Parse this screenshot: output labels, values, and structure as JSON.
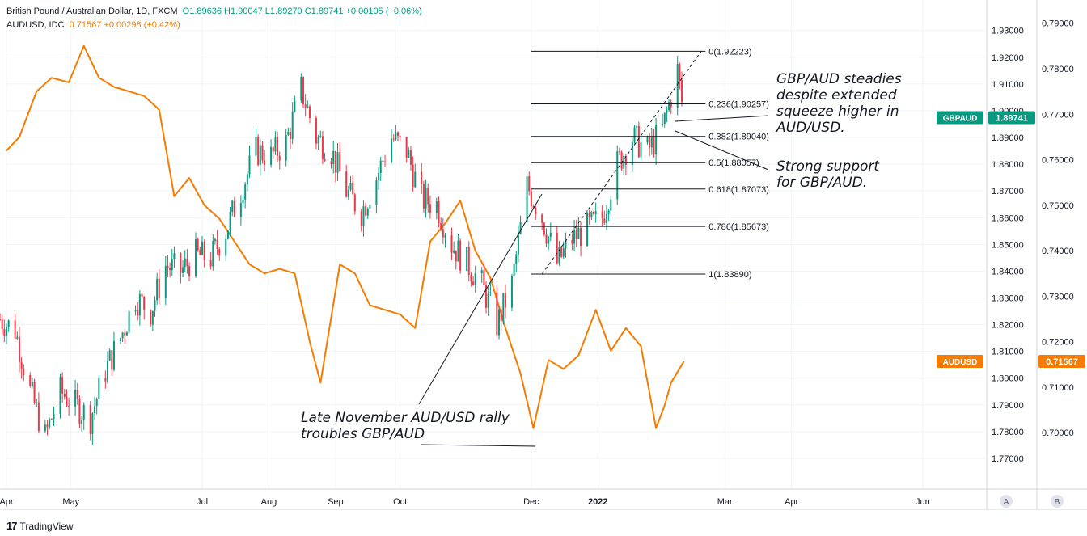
{
  "legend": {
    "main_symbol": "British Pound / Australian Dollar, 1D, FXCM",
    "main_values": "O1.89636  H1.90047  L1.89270  C1.89741  +0.00105 (+0.06%)",
    "overlay_symbol": "AUDUSD, IDC",
    "overlay_values": "0.71567  +0.00298 (+0.42%)"
  },
  "annotations": {
    "steady": "GBP/AUD steadies\ndespite extended\nsqueeze higher in\nAUD/USD.",
    "support": "Strong support\nfor GBP/AUD.",
    "rally": "Late November AUD/USD rally\ntroubles GBP/AUD"
  },
  "footer": {
    "logo": "17",
    "brand": "TradingView"
  },
  "colors": {
    "up": "#089981",
    "down": "#f23645",
    "overlay": "#f57c00",
    "grid": "#f0f3fa",
    "axis": "#d1d4dc"
  },
  "chart_data": {
    "type": "candlestick",
    "title": "British Pound / Australian Dollar, 1D, FXCM",
    "x_range": [
      "2021-04-01",
      "2022-06-30"
    ],
    "x_ticks": [
      {
        "date": "2021-04-01",
        "label": "Apr"
      },
      {
        "date": "2021-05-01",
        "label": "May"
      },
      {
        "date": "2021-07-01",
        "label": "Jul"
      },
      {
        "date": "2021-08-01",
        "label": "Aug"
      },
      {
        "date": "2021-09-01",
        "label": "Sep"
      },
      {
        "date": "2021-10-01",
        "label": "Oct"
      },
      {
        "date": "2021-12-01",
        "label": "Dec"
      },
      {
        "date": "2022-01-01",
        "label": "2022"
      },
      {
        "date": "2022-03-01",
        "label": "Mar"
      },
      {
        "date": "2022-04-01",
        "label": "Apr"
      },
      {
        "date": "2022-06-01",
        "label": "Jun"
      }
    ],
    "left_axis": {
      "name": "GBPAUD",
      "range": [
        1.7585,
        1.9414
      ],
      "ticks": [
        1.77,
        1.78,
        1.79,
        1.8,
        1.81,
        1.82,
        1.83,
        1.84,
        1.85,
        1.86,
        1.87,
        1.88,
        1.89,
        1.9,
        1.91,
        1.92,
        1.93
      ],
      "tick_labels": [
        "1.77000",
        "1.78000",
        "1.79000",
        "1.80000",
        "1.81000",
        "1.82000",
        "1.83000",
        "1.84000",
        "1.85000",
        "1.86000",
        "1.87000",
        "1.88000",
        "1.89000",
        "1.90000",
        "1.91000",
        "1.92000",
        "1.93000"
      ],
      "last": 1.89741,
      "last_label": "1.89741",
      "badge": "GBPAUD"
    },
    "right_axis": {
      "name": "AUDUSD",
      "range": [
        0.6876,
        0.7951
      ],
      "ticks": [
        0.7,
        0.71,
        0.72,
        0.73,
        0.74,
        0.75,
        0.76,
        0.77,
        0.78,
        0.79
      ],
      "tick_labels": [
        "0.70000",
        "0.71000",
        "0.72000",
        "0.73000",
        "0.74000",
        "0.75000",
        "0.76000",
        "0.77000",
        "0.78000",
        "0.79000"
      ],
      "last": 0.71567,
      "last_label": "0.71567",
      "badge": "AUDUSD"
    },
    "gbpaud_closes": [
      {
        "date": "2021-03-29",
        "v": 1.822
      },
      {
        "date": "2021-04-05",
        "v": 1.818
      },
      {
        "date": "2021-04-12",
        "v": 1.795
      },
      {
        "date": "2021-04-19",
        "v": 1.778
      },
      {
        "date": "2021-04-26",
        "v": 1.795
      },
      {
        "date": "2021-05-03",
        "v": 1.79
      },
      {
        "date": "2021-05-10",
        "v": 1.785
      },
      {
        "date": "2021-05-17",
        "v": 1.803
      },
      {
        "date": "2021-05-24",
        "v": 1.815
      },
      {
        "date": "2021-05-31",
        "v": 1.83
      },
      {
        "date": "2021-06-07",
        "v": 1.825
      },
      {
        "date": "2021-06-14",
        "v": 1.842
      },
      {
        "date": "2021-06-21",
        "v": 1.84
      },
      {
        "date": "2021-06-28",
        "v": 1.846
      },
      {
        "date": "2021-07-05",
        "v": 1.845
      },
      {
        "date": "2021-07-12",
        "v": 1.855
      },
      {
        "date": "2021-07-19",
        "v": 1.87
      },
      {
        "date": "2021-07-26",
        "v": 1.885
      },
      {
        "date": "2021-08-02",
        "v": 1.883
      },
      {
        "date": "2021-08-09",
        "v": 1.888
      },
      {
        "date": "2021-08-16",
        "v": 1.908
      },
      {
        "date": "2021-08-23",
        "v": 1.89
      },
      {
        "date": "2021-08-30",
        "v": 1.885
      },
      {
        "date": "2021-09-06",
        "v": 1.87
      },
      {
        "date": "2021-09-13",
        "v": 1.862
      },
      {
        "date": "2021-09-20",
        "v": 1.875
      },
      {
        "date": "2021-09-27",
        "v": 1.89
      },
      {
        "date": "2021-10-04",
        "v": 1.885
      },
      {
        "date": "2021-10-11",
        "v": 1.867
      },
      {
        "date": "2021-10-18",
        "v": 1.865
      },
      {
        "date": "2021-10-25",
        "v": 1.85
      },
      {
        "date": "2021-11-01",
        "v": 1.843
      },
      {
        "date": "2021-11-08",
        "v": 1.835
      },
      {
        "date": "2021-11-15",
        "v": 1.82
      },
      {
        "date": "2021-11-22",
        "v": 1.835
      },
      {
        "date": "2021-11-29",
        "v": 1.872
      },
      {
        "date": "2021-12-06",
        "v": 1.86
      },
      {
        "date": "2021-12-13",
        "v": 1.843
      },
      {
        "date": "2021-12-20",
        "v": 1.852
      },
      {
        "date": "2021-12-27",
        "v": 1.856
      },
      {
        "date": "2022-01-03",
        "v": 1.86
      },
      {
        "date": "2022-01-10",
        "v": 1.88
      },
      {
        "date": "2022-01-17",
        "v": 1.89
      },
      {
        "date": "2022-01-24",
        "v": 1.885
      },
      {
        "date": "2022-01-31",
        "v": 1.893
      },
      {
        "date": "2022-02-07",
        "v": 1.915
      },
      {
        "date": "2022-02-10",
        "v": 1.8974
      }
    ],
    "audusd_closes": [
      {
        "date": "2021-04-01",
        "v": 0.762
      },
      {
        "date": "2021-04-07",
        "v": 0.765
      },
      {
        "date": "2021-04-15",
        "v": 0.775
      },
      {
        "date": "2021-04-22",
        "v": 0.778
      },
      {
        "date": "2021-04-30",
        "v": 0.777
      },
      {
        "date": "2021-05-07",
        "v": 0.785
      },
      {
        "date": "2021-05-14",
        "v": 0.778
      },
      {
        "date": "2021-05-21",
        "v": 0.776
      },
      {
        "date": "2021-05-28",
        "v": 0.775
      },
      {
        "date": "2021-06-04",
        "v": 0.774
      },
      {
        "date": "2021-06-11",
        "v": 0.771
      },
      {
        "date": "2021-06-18",
        "v": 0.752
      },
      {
        "date": "2021-06-25",
        "v": 0.756
      },
      {
        "date": "2021-07-02",
        "v": 0.75
      },
      {
        "date": "2021-07-09",
        "v": 0.747
      },
      {
        "date": "2021-07-16",
        "v": 0.742
      },
      {
        "date": "2021-07-23",
        "v": 0.737
      },
      {
        "date": "2021-07-30",
        "v": 0.735
      },
      {
        "date": "2021-08-06",
        "v": 0.736
      },
      {
        "date": "2021-08-13",
        "v": 0.735
      },
      {
        "date": "2021-08-20",
        "v": 0.72
      },
      {
        "date": "2021-08-25",
        "v": 0.711
      },
      {
        "date": "2021-09-03",
        "v": 0.737
      },
      {
        "date": "2021-09-10",
        "v": 0.735
      },
      {
        "date": "2021-09-17",
        "v": 0.728
      },
      {
        "date": "2021-09-24",
        "v": 0.727
      },
      {
        "date": "2021-10-01",
        "v": 0.726
      },
      {
        "date": "2021-10-08",
        "v": 0.723
      },
      {
        "date": "2021-10-15",
        "v": 0.742
      },
      {
        "date": "2021-10-22",
        "v": 0.746
      },
      {
        "date": "2021-10-29",
        "v": 0.751
      },
      {
        "date": "2021-11-05",
        "v": 0.74
      },
      {
        "date": "2021-11-12",
        "v": 0.734
      },
      {
        "date": "2021-11-19",
        "v": 0.723
      },
      {
        "date": "2021-11-26",
        "v": 0.713
      },
      {
        "date": "2021-12-02",
        "v": 0.701
      },
      {
        "date": "2021-12-09",
        "v": 0.716
      },
      {
        "date": "2021-12-16",
        "v": 0.714
      },
      {
        "date": "2021-12-23",
        "v": 0.717
      },
      {
        "date": "2021-12-31",
        "v": 0.727
      },
      {
        "date": "2022-01-07",
        "v": 0.718
      },
      {
        "date": "2022-01-14",
        "v": 0.723
      },
      {
        "date": "2022-01-21",
        "v": 0.719
      },
      {
        "date": "2022-01-28",
        "v": 0.701
      },
      {
        "date": "2022-02-01",
        "v": 0.706
      },
      {
        "date": "2022-02-04",
        "v": 0.711
      },
      {
        "date": "2022-02-10",
        "v": 0.7157
      }
    ],
    "fibonacci": {
      "from_date": "2021-12-01",
      "to_date": "2022-02-20",
      "levels": [
        {
          "ratio": "0",
          "value": 1.92223,
          "label": "0(1.92223)"
        },
        {
          "ratio": "0.236",
          "value": 1.90257,
          "label": "0.236(1.90257)"
        },
        {
          "ratio": "0.382",
          "value": 1.8904,
          "label": "0.382(1.89040)"
        },
        {
          "ratio": "0.5",
          "value": 1.88057,
          "label": "0.5(1.88057)"
        },
        {
          "ratio": "0.618",
          "value": 1.87073,
          "label": "0.618(1.87073)"
        },
        {
          "ratio": "0.786",
          "value": 1.85673,
          "label": "0.786(1.85673)"
        },
        {
          "ratio": "1",
          "value": 1.8389,
          "label": "1(1.83890)"
        }
      ],
      "trend_from": {
        "date": "2021-12-06",
        "v": 1.8389
      },
      "trend_to": {
        "date": "2022-02-18",
        "v": 1.92223
      }
    },
    "pane_labels": [
      "A",
      "B"
    ]
  }
}
